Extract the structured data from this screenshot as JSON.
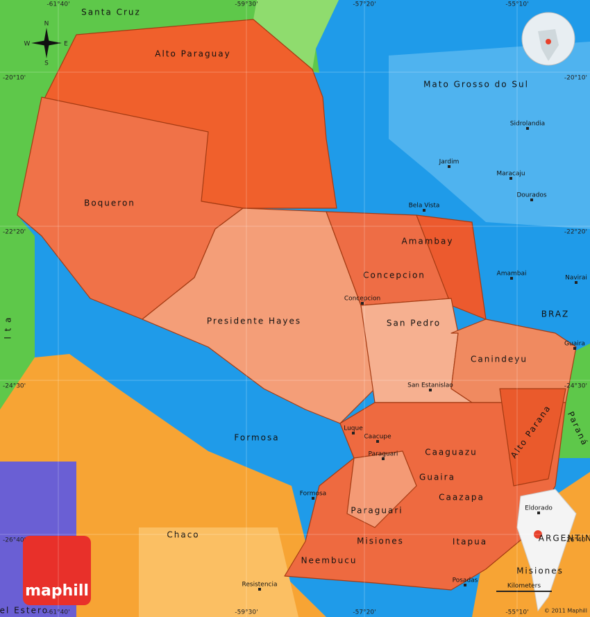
{
  "map": {
    "departments": [
      "Alto Paraguay",
      "Boqueron",
      "Presidente Hayes",
      "Concepcion",
      "Amambay",
      "San Pedro",
      "Canindeyu",
      "Alto Parana",
      "Caaguazu",
      "Guaira",
      "Caazapa",
      "Paraguari",
      "Misiones",
      "Itapua",
      "Neembucu"
    ],
    "neighbors": [
      "Santa Cruz",
      "Mato Grosso do Sul",
      "BRAZ",
      "Formosa",
      "Chaco",
      "ARGENTINA",
      "Misiones",
      "Paraná",
      "l t a",
      "del Estero"
    ],
    "cities": [
      "Sidrolandia",
      "Jardim",
      "Maracaju",
      "Bela Vista",
      "Dourados",
      "Amambai",
      "Navirai",
      "Guaira",
      "Concepcion",
      "San Estanislao",
      "Luque",
      "Caacupe",
      "Paraguari",
      "Formosa",
      "Resistencia",
      "Posadas",
      "Eldorado"
    ],
    "longitudes": [
      "-61°40'",
      "-59°30'",
      "-57°20'",
      "-55°10'"
    ],
    "latitudes": [
      "-20°10'",
      "-22°20'",
      "-24°30'",
      "-26°40'"
    ],
    "compass": [
      "N",
      "S",
      "E",
      "W"
    ],
    "logo": "maphill",
    "scale_label": "Kilometers",
    "copyright": "© 2011 Maphill"
  }
}
